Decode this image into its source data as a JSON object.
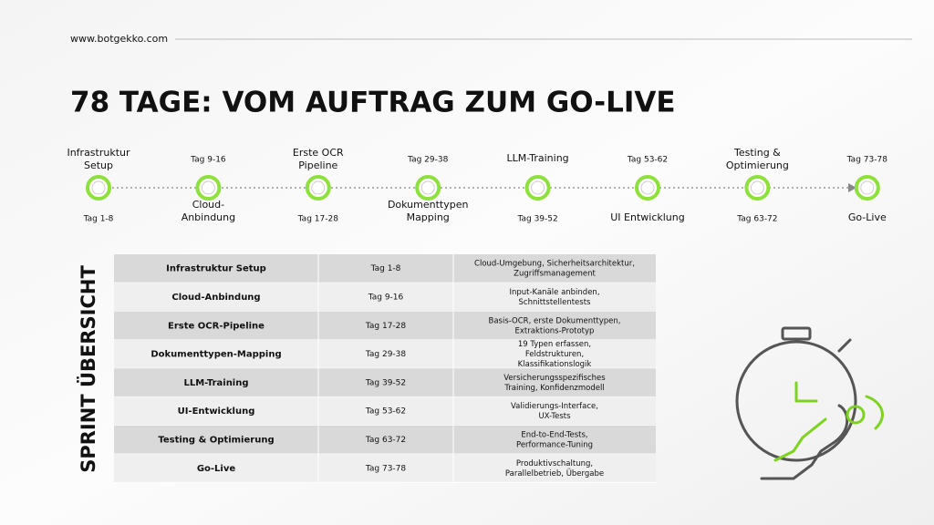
{
  "header": {
    "url": "www.botgekko.com",
    "title": "78 TAGE: VOM AUFTRAG ZUM GO-LIVE"
  },
  "timeline": {
    "milestones": [
      {
        "name": [
          "Infrastruktur",
          "Setup"
        ],
        "tag": "Tag 1-8"
      },
      {
        "name": [
          "Cloud-",
          "Anbindung"
        ],
        "tag": "Tag 9-16"
      },
      {
        "name": [
          "Erste OCR",
          "Pipeline"
        ],
        "tag": "Tag 17-28"
      },
      {
        "name": [
          "Dokumenttypen",
          "Mapping"
        ],
        "tag": "Tag 29-38"
      },
      {
        "name": [
          "LLM-Training"
        ],
        "tag": "Tag 39-52"
      },
      {
        "name": [
          "UI Entwicklung"
        ],
        "tag": "Tag 53-62"
      },
      {
        "name": [
          "Testing &",
          "Optimierung"
        ],
        "tag": "Tag 63-72"
      },
      {
        "name": [
          "Go-Live"
        ],
        "tag": "Tag 73-78"
      }
    ]
  },
  "side_label": "SPRINT ÜBERSICHT",
  "table": {
    "rows": [
      [
        "Infrastruktur Setup",
        "Tag 1-8",
        [
          "Cloud-Umgebung, Sicherheitsarchitektur,",
          "Zugriffsmanagement"
        ]
      ],
      [
        "Cloud-Anbindung",
        "Tag 9-16",
        [
          "Input-Kanäle anbinden,",
          "Schnittstellentests"
        ]
      ],
      [
        "Erste OCR-Pipeline",
        "Tag 17-28",
        [
          "Basis-OCR, erste Dokumenttypen,",
          "Extraktions-Prototyp"
        ]
      ],
      [
        "Dokumenttypen-Mapping",
        "Tag 29-38",
        [
          "19 Typen erfassen,",
          "Feldstrukturen,",
          "Klassifikationslogik"
        ]
      ],
      [
        "LLM-Training",
        "Tag 39-52",
        [
          "Versicherungsspezifisches",
          "Training, Konfidenzmodell"
        ]
      ],
      [
        "UI-Entwicklung",
        "Tag 53-62",
        [
          "Validierungs-Interface,",
          "UX-Tests"
        ]
      ],
      [
        "Testing & Optimierung",
        "Tag 63-72",
        [
          "End-to-End-Tests,",
          "Performance-Tuning"
        ]
      ],
      [
        "Go-Live",
        "Tag 73-78",
        [
          "Produktivschaltung,",
          "Parallelbetrieb, Übergabe"
        ]
      ]
    ]
  }
}
